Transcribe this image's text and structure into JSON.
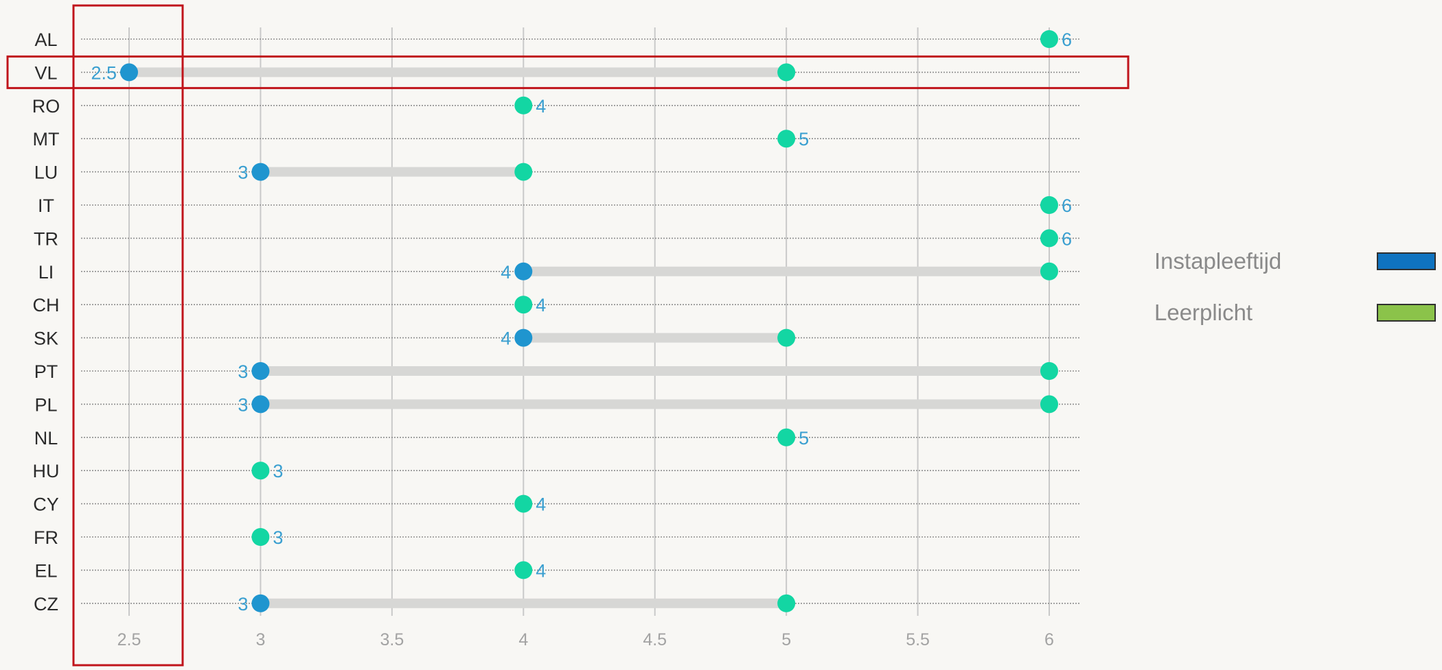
{
  "chart_data": {
    "type": "dumbbell",
    "categories": [
      "AL",
      "VL",
      "RO",
      "MT",
      "LU",
      "IT",
      "TR",
      "LI",
      "CH",
      "SK",
      "PT",
      "PL",
      "NL",
      "HU",
      "CY",
      "FR",
      "EL",
      "CZ"
    ],
    "series": [
      {
        "name": "Instapleeftijd",
        "color": "#1f95cf",
        "values": [
          null,
          2.5,
          null,
          null,
          3,
          null,
          null,
          4,
          null,
          4,
          3,
          3,
          null,
          null,
          null,
          null,
          null,
          3
        ]
      },
      {
        "name": "Leerplicht",
        "color": "#13d6a3",
        "values": [
          6,
          5,
          4,
          5,
          4,
          6,
          6,
          6,
          4,
          5,
          6,
          6,
          5,
          3,
          4,
          3,
          4,
          5
        ]
      }
    ],
    "data_labels": [
      "6",
      "2.5",
      "4",
      "5",
      "3",
      "6",
      "6",
      "4",
      "4",
      "4",
      "3",
      "3",
      "5",
      "3",
      "4",
      "3",
      "4",
      "3"
    ],
    "xticks": [
      2.5,
      3,
      3.5,
      4,
      4.5,
      5,
      5.5,
      6
    ],
    "xtick_labels": [
      "2.5",
      "3",
      "3.5",
      "4",
      "4.5",
      "5",
      "5.5",
      "6"
    ],
    "xlim": [
      2.32,
      6.12
    ],
    "grid": true,
    "legend": {
      "placement": "right",
      "items": [
        {
          "label": "Instapleeftijd",
          "color": "#0f73c0"
        },
        {
          "label": "Leerplicht",
          "color": "#8bc34a"
        }
      ]
    },
    "annotations": [
      {
        "type": "highlight-row",
        "category": "VL",
        "color": "#c0141b"
      },
      {
        "type": "highlight-column",
        "x": 2.5,
        "color": "#c0141b"
      }
    ]
  }
}
